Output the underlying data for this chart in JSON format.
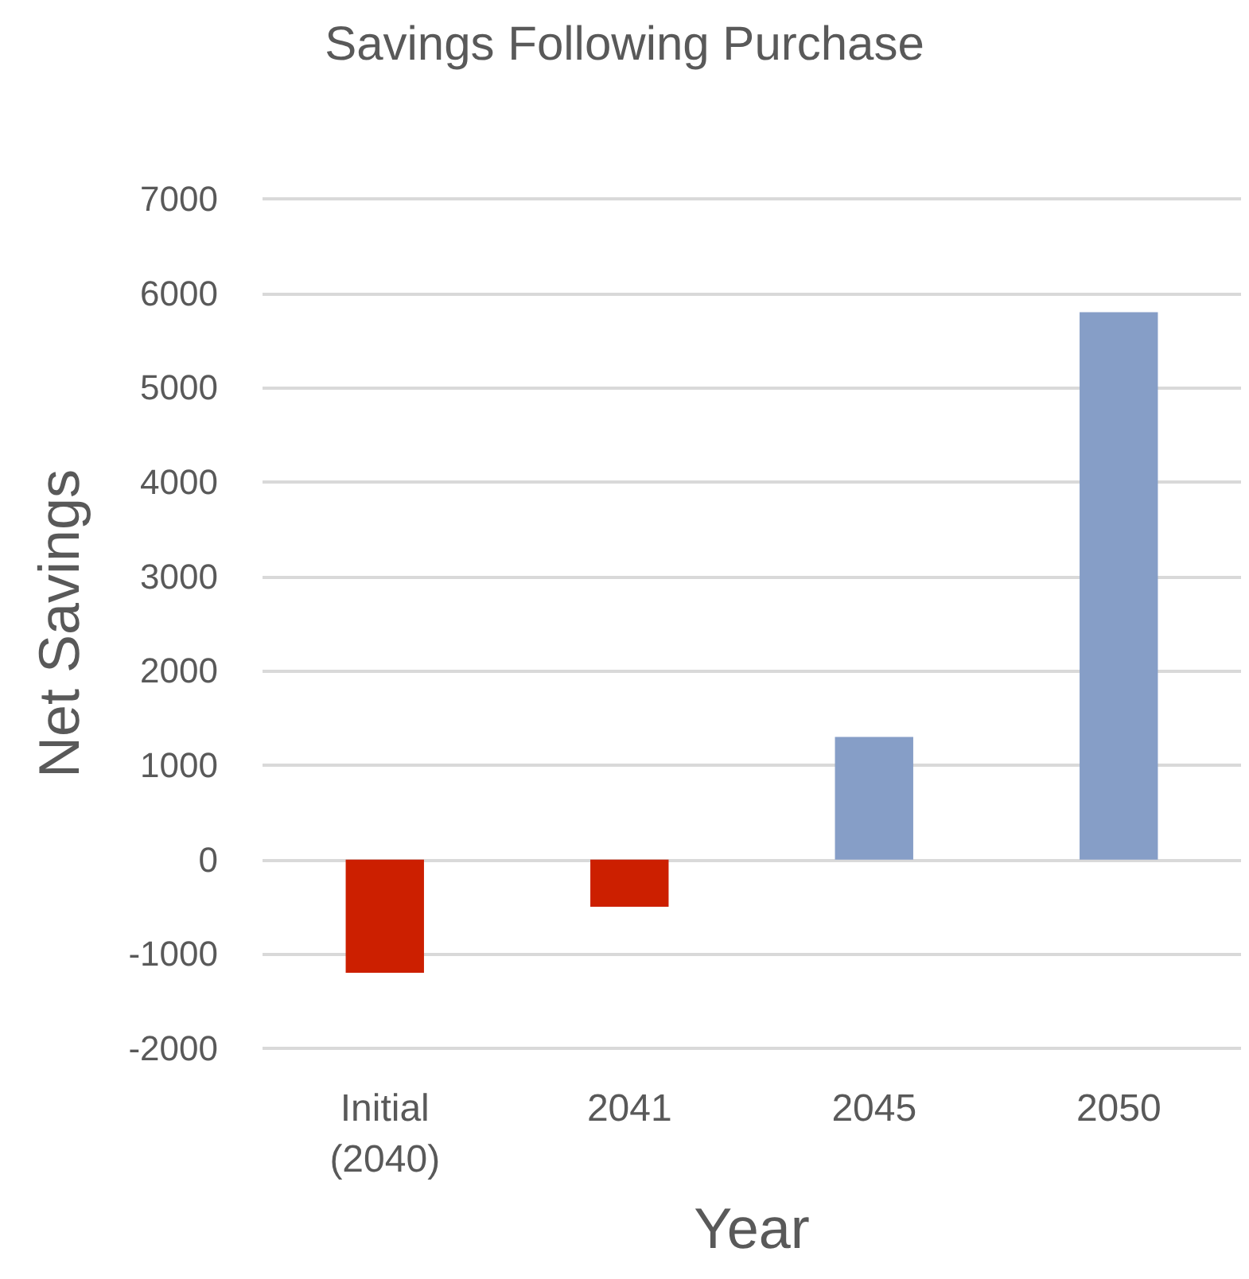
{
  "chart_data": {
    "type": "bar",
    "title": "Savings Following Purchase",
    "xlabel": "Year",
    "ylabel": "Net Savings",
    "categories": [
      "Initial\n(2040)",
      "2041",
      "2045",
      "2050"
    ],
    "values": [
      -1200,
      -500,
      1300,
      5800
    ],
    "colors": [
      "#cc1f00",
      "#cc1f00",
      "#869ec7",
      "#869ec7"
    ],
    "ylim": [
      -2000,
      7000
    ],
    "yticks": [
      -2000,
      -1000,
      0,
      1000,
      2000,
      3000,
      4000,
      5000,
      6000,
      7000
    ],
    "grid": "y"
  }
}
